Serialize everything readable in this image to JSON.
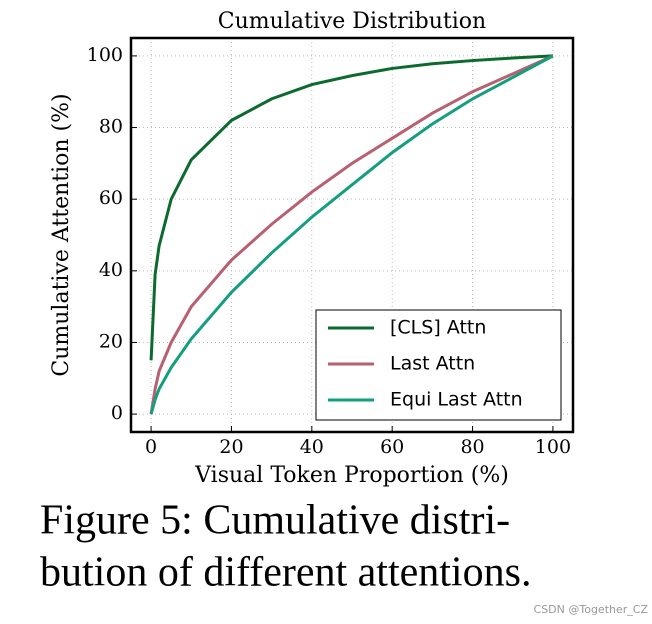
{
  "chart_data": {
    "type": "line",
    "title": "Cumulative Distribution",
    "xlabel": "Visual Token Proportion (%)",
    "ylabel": "Cumulative Attention (%)",
    "x": [
      0,
      1,
      2,
      5,
      10,
      20,
      30,
      40,
      50,
      60,
      70,
      80,
      90,
      100
    ],
    "series": [
      {
        "name": "[CLS] Attn",
        "color": "#0b6b2e",
        "values": [
          15,
          39,
          47,
          60,
          71,
          82,
          88,
          92,
          94.5,
          96.5,
          97.8,
          98.7,
          99.4,
          100
        ]
      },
      {
        "name": "Last Attn",
        "color": "#b86070",
        "values": [
          0,
          7,
          12,
          20,
          30,
          43,
          53,
          62,
          70,
          77,
          84,
          90,
          95,
          100
        ]
      },
      {
        "name": "Equi Last Attn",
        "color": "#139f7f",
        "values": [
          0,
          4,
          7,
          13,
          21,
          34,
          45,
          55,
          64,
          73,
          81,
          88,
          94,
          100
        ]
      }
    ],
    "xlim": [
      -5,
      105
    ],
    "ylim": [
      -5,
      105
    ],
    "xticks": [
      0,
      20,
      40,
      60,
      80,
      100
    ],
    "yticks": [
      0,
      20,
      40,
      60,
      80,
      100
    ],
    "grid": true,
    "legend": "lower right"
  },
  "caption": [
    "Figure 5: Cumulative distri-",
    "bution of different attentions."
  ],
  "watermark": "CSDN @Together_CZ"
}
